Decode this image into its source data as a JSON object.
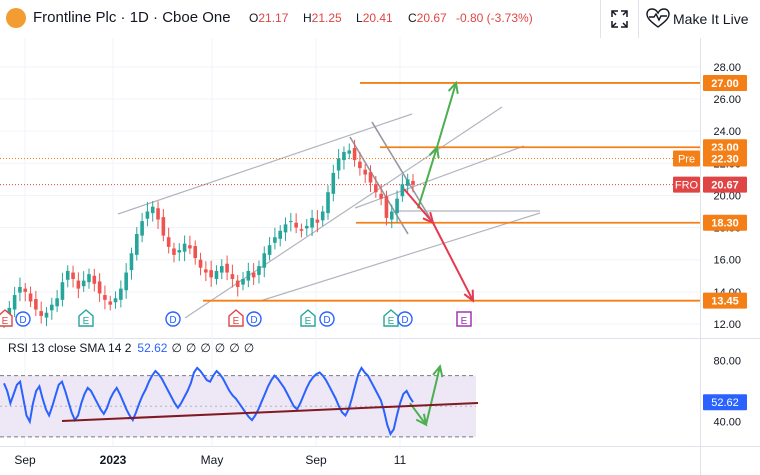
{
  "header": {
    "symbol": "Frontline Plc · 1D · Cboe One",
    "open_label": "O",
    "open": "21.17",
    "high_label": "H",
    "high": "21.25",
    "low_label": "L",
    "low": "20.41",
    "close_label": "C",
    "close": "20.67",
    "change": "-0.80 (-3.73%)",
    "fullscreen_icon": "fullscreen-icon",
    "make_it_live_icon": "heart-pulse-icon",
    "make_it_live_label": "Make It Live"
  },
  "colors": {
    "up": "#26a69a",
    "down": "#ef5350",
    "level": "#f57f17",
    "rsi": "#2962ff",
    "green_arrow": "#4caf50",
    "red_arrow": "#e53950",
    "trend": "#b2b5be",
    "rsi_trend": "#801922",
    "rsi_band": "#ede7f6"
  },
  "chart_data": [
    {
      "type": "candlestick",
      "title": "Frontline Plc · 1D · Cboe One",
      "ylim": [
        11.5,
        29.3
      ],
      "y_ticks": [
        "28.00",
        "26.00",
        "24.00",
        "22.00",
        "20.00",
        "18.00",
        "16.00",
        "14.00",
        "12.00"
      ],
      "x_ticks": [
        "Sep",
        "2023",
        "May",
        "Sep",
        "11"
      ],
      "price_levels": [
        {
          "label": "27.00",
          "value": 27.0,
          "color": "#f57f17"
        },
        {
          "label": "23.00",
          "value": 23.0,
          "color": "#f57f17"
        },
        {
          "label": "18.30",
          "value": 18.3,
          "color": "#f57f17"
        },
        {
          "label": "13.45",
          "value": 13.45,
          "color": "#f57f17"
        }
      ],
      "price_tags": [
        {
          "prefix": "Pre",
          "label": "22.30",
          "value": 22.3,
          "color": "#f57f17"
        },
        {
          "prefix": "FRO",
          "label": "20.67",
          "value": 20.67,
          "color": "#e04545"
        }
      ],
      "close_series": [
        12.4,
        13.0,
        13.8,
        14.3,
        14.0,
        13.4,
        12.9,
        12.5,
        12.7,
        13.2,
        13.6,
        14.6,
        15.3,
        14.8,
        14.2,
        14.7,
        15.1,
        14.5,
        13.9,
        13.5,
        13.2,
        13.6,
        14.2,
        15.2,
        16.4,
        17.6,
        18.4,
        19.0,
        19.3,
        18.5,
        17.5,
        16.8,
        16.3,
        16.6,
        17.0,
        16.7,
        16.1,
        15.5,
        15.2,
        14.9,
        15.3,
        15.6,
        15.2,
        14.8,
        14.3,
        14.8,
        15.3,
        14.9,
        15.6,
        16.4,
        16.9,
        17.4,
        17.8,
        18.2,
        18.4,
        18.0,
        17.8,
        18.1,
        18.6,
        18.3,
        19.0,
        20.2,
        21.4,
        22.3,
        22.7,
        22.8,
        22.2,
        21.7,
        21.3,
        20.8,
        20.2,
        19.8,
        18.6,
        19.0,
        19.8,
        20.7,
        21.0,
        20.67
      ],
      "events": [
        {
          "label": "E",
          "kind": "earnings"
        },
        {
          "label": "D",
          "kind": "dividend"
        },
        {
          "label": "E",
          "kind": "earnings"
        },
        {
          "label": "D",
          "kind": "dividend"
        },
        {
          "label": "E",
          "kind": "earnings"
        },
        {
          "label": "D",
          "kind": "dividend"
        },
        {
          "label": "E",
          "kind": "earnings"
        },
        {
          "label": "D",
          "kind": "dividend"
        },
        {
          "label": "E",
          "kind": "earnings"
        },
        {
          "label": "D",
          "kind": "dividend"
        },
        {
          "label": "E",
          "kind": "upcoming-earnings"
        }
      ],
      "annotations": [
        {
          "kind": "arrow-up",
          "from": 19.2,
          "to": 23.0,
          "color": "#4caf50"
        },
        {
          "kind": "arrow-up",
          "from": 23.0,
          "to": 27.0,
          "color": "#4caf50"
        },
        {
          "kind": "arrow-down",
          "from": 20.4,
          "to": 18.3,
          "color": "#e53950"
        },
        {
          "kind": "arrow-down",
          "from": 18.3,
          "to": 13.45,
          "color": "#e53950"
        }
      ]
    },
    {
      "type": "line",
      "title": "RSI 13 close SMA 14 2",
      "legend_value": "52.62",
      "legend_placeholders": [
        "∅",
        "∅",
        "∅",
        "∅",
        "∅",
        "∅"
      ],
      "ylim": [
        28,
        88
      ],
      "bands": [
        70,
        30
      ],
      "y_ticks": [
        "80.00",
        "40.00"
      ],
      "last_value_tag": "52.62",
      "series": [
        {
          "name": "RSI",
          "values": [
            65,
            60,
            52,
            58,
            64,
            66,
            55,
            44,
            40,
            52,
            60,
            63,
            55,
            48,
            44,
            50,
            57,
            64,
            66,
            60,
            53,
            46,
            41,
            44,
            52,
            58,
            62,
            60,
            56,
            52,
            48,
            45,
            49,
            55,
            59,
            62,
            58,
            53,
            48,
            44,
            41,
            46,
            52,
            57,
            61,
            66,
            70,
            73,
            71,
            68,
            64,
            60,
            56,
            52,
            49,
            52,
            56,
            60,
            65,
            72,
            75,
            73,
            70,
            67,
            66,
            70,
            73,
            71,
            68,
            64,
            60,
            57,
            55,
            52,
            49,
            46,
            43,
            41,
            44,
            48,
            53,
            58,
            63,
            67,
            70,
            68,
            65,
            62,
            58,
            54,
            50,
            48,
            52,
            57,
            62,
            66,
            69,
            71,
            72,
            70,
            67,
            63,
            59,
            55,
            50,
            46,
            44,
            48,
            55,
            63,
            71,
            75,
            72,
            70,
            66,
            62,
            58,
            54,
            47,
            38,
            32,
            35,
            44,
            52,
            58,
            60,
            56,
            52.62
          ]
        }
      ]
    }
  ]
}
